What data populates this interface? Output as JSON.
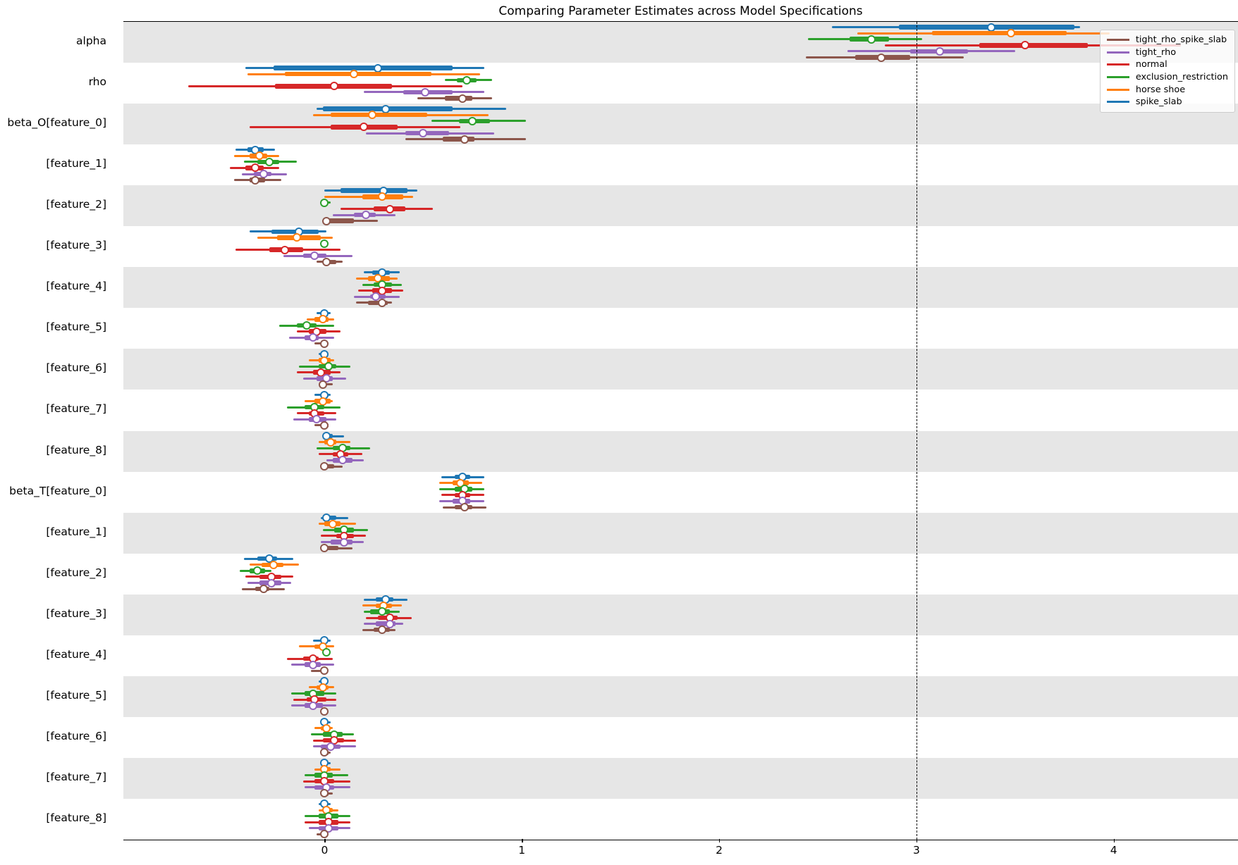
{
  "colors": {
    "background": "#ffffff",
    "band_shaded": "#e6e6e6",
    "spine": "#000000",
    "reference_line": "#000000",
    "legend_border": "#cccccc"
  },
  "chart_data": {
    "type": "forest",
    "title": "Comparing Parameter Estimates across Model Specifications",
    "xlabel": "",
    "ylabel": "",
    "xlim": [
      -1.02,
      4.63
    ],
    "xticks": [
      0,
      1,
      2,
      3,
      4
    ],
    "xtick_labels": [
      "0",
      "1",
      "2",
      "3",
      "4"
    ],
    "reference_line_x": 3,
    "grid": false,
    "legend_position": "upper right",
    "legend": [
      {
        "label": "tight_rho_spike_slab",
        "color": "#8c564b"
      },
      {
        "label": "tight_rho",
        "color": "#9467bd"
      },
      {
        "label": "normal",
        "color": "#d62728"
      },
      {
        "label": "exclusion_restriction",
        "color": "#2ca02c"
      },
      {
        "label": "horse shoe",
        "color": "#ff7f0e"
      },
      {
        "label": "spike_slab",
        "color": "#1f77b4"
      }
    ],
    "series": [
      {
        "name": "spike_slab",
        "color": "#1f77b4"
      },
      {
        "name": "horse shoe",
        "color": "#ff7f0e"
      },
      {
        "name": "exclusion_restriction",
        "color": "#2ca02c"
      },
      {
        "name": "normal",
        "color": "#d62728"
      },
      {
        "name": "tight_rho",
        "color": "#9467bd"
      },
      {
        "name": "tight_rho_spike_slab",
        "color": "#8c564b"
      }
    ],
    "value_format": "[ci_low, q25, median, q75, ci_high]",
    "rows": [
      {
        "label": "alpha",
        "shaded": true,
        "values": [
          [
            2.57,
            2.91,
            3.38,
            3.8,
            3.83
          ],
          [
            2.7,
            3.08,
            3.48,
            3.76,
            3.98
          ],
          [
            2.45,
            2.66,
            2.77,
            2.86,
            3.03
          ],
          [
            2.84,
            3.32,
            3.55,
            3.87,
            4.34
          ],
          [
            2.65,
            2.97,
            3.12,
            3.26,
            3.5
          ],
          [
            2.44,
            2.69,
            2.82,
            2.97,
            3.24
          ]
        ]
      },
      {
        "label": "rho",
        "shaded": false,
        "values": [
          [
            -0.4,
            -0.26,
            0.27,
            0.65,
            0.81
          ],
          [
            -0.39,
            -0.2,
            0.15,
            0.54,
            0.79
          ],
          [
            0.61,
            0.67,
            0.72,
            0.77,
            0.85
          ],
          [
            -0.69,
            -0.25,
            0.05,
            0.34,
            0.7
          ],
          [
            0.2,
            0.4,
            0.51,
            0.65,
            0.81
          ],
          [
            0.47,
            0.61,
            0.7,
            0.75,
            0.85
          ]
        ]
      },
      {
        "label": "beta_O[feature_0]",
        "shaded": true,
        "values": [
          [
            -0.04,
            -0.01,
            0.31,
            0.65,
            0.92
          ],
          [
            -0.06,
            0.03,
            0.24,
            0.52,
            0.83
          ],
          [
            0.54,
            0.68,
            0.75,
            0.84,
            1.02
          ],
          [
            -0.38,
            0.03,
            0.2,
            0.37,
            0.69
          ],
          [
            0.21,
            0.41,
            0.5,
            0.63,
            0.86
          ],
          [
            0.41,
            0.6,
            0.71,
            0.76,
            1.02
          ]
        ]
      },
      {
        "label": "[feature_1]",
        "shaded": false,
        "values": [
          [
            -0.45,
            -0.39,
            -0.35,
            -0.31,
            -0.25
          ],
          [
            -0.46,
            -0.38,
            -0.33,
            -0.29,
            -0.23
          ],
          [
            -0.41,
            -0.34,
            -0.28,
            -0.23,
            -0.14
          ],
          [
            -0.48,
            -0.4,
            -0.35,
            -0.31,
            -0.23
          ],
          [
            -0.42,
            -0.36,
            -0.31,
            -0.27,
            -0.19
          ],
          [
            -0.46,
            -0.38,
            -0.35,
            -0.3,
            -0.22
          ]
        ]
      },
      {
        "label": "[feature_2]",
        "shaded": true,
        "values": [
          [
            0.0,
            0.08,
            0.3,
            0.42,
            0.47
          ],
          [
            0.0,
            0.19,
            0.29,
            0.4,
            0.45
          ],
          [
            -0.02,
            -0.01,
            0.0,
            0.01,
            0.03
          ],
          [
            0.08,
            0.25,
            0.33,
            0.41,
            0.55
          ],
          [
            0.04,
            0.15,
            0.21,
            0.26,
            0.36
          ],
          [
            -0.01,
            0.0,
            0.01,
            0.15,
            0.27
          ]
        ]
      },
      {
        "label": "[feature_3]",
        "shaded": false,
        "values": [
          [
            -0.38,
            -0.27,
            -0.13,
            -0.03,
            0.01
          ],
          [
            -0.34,
            -0.24,
            -0.14,
            -0.02,
            0.04
          ],
          [
            -0.02,
            -0.01,
            0.0,
            0.01,
            0.02
          ],
          [
            -0.45,
            -0.28,
            -0.2,
            -0.11,
            0.08
          ],
          [
            -0.21,
            -0.11,
            -0.05,
            0.01,
            0.14
          ],
          [
            -0.04,
            0.0,
            0.01,
            0.06,
            0.09
          ]
        ]
      },
      {
        "label": "[feature_4]",
        "shaded": true,
        "values": [
          [
            0.2,
            0.24,
            0.29,
            0.33,
            0.38
          ],
          [
            0.16,
            0.22,
            0.27,
            0.33,
            0.37
          ],
          [
            0.19,
            0.25,
            0.29,
            0.34,
            0.39
          ],
          [
            0.17,
            0.24,
            0.29,
            0.34,
            0.4
          ],
          [
            0.15,
            0.23,
            0.26,
            0.31,
            0.38
          ],
          [
            0.16,
            0.22,
            0.29,
            0.32,
            0.34
          ]
        ]
      },
      {
        "label": "[feature_5]",
        "shaded": false,
        "values": [
          [
            -0.04,
            -0.02,
            0.0,
            0.01,
            0.03
          ],
          [
            -0.09,
            -0.05,
            -0.01,
            0.02,
            0.05
          ],
          [
            -0.23,
            -0.14,
            -0.09,
            -0.04,
            0.05
          ],
          [
            -0.14,
            -0.08,
            -0.04,
            0.01,
            0.08
          ],
          [
            -0.18,
            -0.1,
            -0.06,
            -0.03,
            0.05
          ],
          [
            -0.05,
            -0.01,
            0.0,
            0.01,
            0.02
          ]
        ]
      },
      {
        "label": "[feature_6]",
        "shaded": true,
        "values": [
          [
            -0.03,
            -0.01,
            0.0,
            0.01,
            0.02
          ],
          [
            -0.08,
            -0.03,
            0.0,
            0.03,
            0.05
          ],
          [
            -0.13,
            -0.03,
            0.02,
            0.06,
            0.13
          ],
          [
            -0.14,
            -0.06,
            -0.02,
            0.03,
            0.08
          ],
          [
            -0.11,
            -0.04,
            0.01,
            0.04,
            0.11
          ],
          [
            -0.02,
            -0.01,
            -0.01,
            0.01,
            0.04
          ]
        ]
      },
      {
        "label": "[feature_7]",
        "shaded": false,
        "values": [
          [
            -0.05,
            -0.02,
            0.0,
            0.02,
            0.03
          ],
          [
            -0.1,
            -0.05,
            -0.01,
            0.03,
            0.04
          ],
          [
            -0.19,
            -0.1,
            -0.05,
            0.0,
            0.08
          ],
          [
            -0.14,
            -0.08,
            -0.05,
            0.0,
            0.06
          ],
          [
            -0.16,
            -0.08,
            -0.04,
            0.01,
            0.06
          ],
          [
            -0.05,
            -0.02,
            0.0,
            0.02,
            0.02
          ]
        ]
      },
      {
        "label": "[feature_8]",
        "shaded": true,
        "values": [
          [
            -0.01,
            0.0,
            0.01,
            0.04,
            0.1
          ],
          [
            -0.03,
            0.0,
            0.03,
            0.06,
            0.13
          ],
          [
            -0.04,
            0.04,
            0.09,
            0.13,
            0.23
          ],
          [
            -0.03,
            0.04,
            0.08,
            0.12,
            0.19
          ],
          [
            0.01,
            0.04,
            0.09,
            0.14,
            0.2
          ],
          [
            -0.01,
            0.0,
            0.0,
            0.05,
            0.09
          ]
        ]
      },
      {
        "label": "beta_T[feature_0]",
        "shaded": false,
        "values": [
          [
            0.59,
            0.66,
            0.7,
            0.74,
            0.81
          ],
          [
            0.58,
            0.65,
            0.69,
            0.73,
            0.8
          ],
          [
            0.58,
            0.66,
            0.71,
            0.75,
            0.81
          ],
          [
            0.59,
            0.66,
            0.7,
            0.74,
            0.81
          ],
          [
            0.58,
            0.65,
            0.7,
            0.74,
            0.81
          ],
          [
            0.6,
            0.66,
            0.71,
            0.75,
            0.82
          ]
        ]
      },
      {
        "label": "[feature_1]",
        "shaded": true,
        "values": [
          [
            -0.02,
            0.0,
            0.01,
            0.06,
            0.12
          ],
          [
            -0.03,
            0.0,
            0.04,
            0.08,
            0.16
          ],
          [
            -0.01,
            0.05,
            0.1,
            0.15,
            0.22
          ],
          [
            -0.02,
            0.06,
            0.1,
            0.15,
            0.21
          ],
          [
            -0.02,
            0.03,
            0.1,
            0.14,
            0.2
          ],
          [
            -0.01,
            0.0,
            0.0,
            0.07,
            0.14
          ]
        ]
      },
      {
        "label": "[feature_2]",
        "shaded": false,
        "values": [
          [
            -0.41,
            -0.34,
            -0.28,
            -0.24,
            -0.16
          ],
          [
            -0.38,
            -0.32,
            -0.26,
            -0.21,
            -0.13
          ],
          [
            -0.43,
            -0.38,
            -0.34,
            -0.3,
            -0.27
          ],
          [
            -0.4,
            -0.33,
            -0.27,
            -0.22,
            -0.16
          ],
          [
            -0.39,
            -0.33,
            -0.27,
            -0.22,
            -0.17
          ],
          [
            -0.42,
            -0.35,
            -0.31,
            -0.28,
            -0.2
          ]
        ]
      },
      {
        "label": "[feature_3]",
        "shaded": true,
        "values": [
          [
            0.2,
            0.26,
            0.31,
            0.35,
            0.42
          ],
          [
            0.19,
            0.26,
            0.3,
            0.34,
            0.39
          ],
          [
            0.2,
            0.23,
            0.29,
            0.33,
            0.38
          ],
          [
            0.21,
            0.27,
            0.33,
            0.37,
            0.44
          ],
          [
            0.2,
            0.26,
            0.33,
            0.36,
            0.4
          ],
          [
            0.19,
            0.25,
            0.29,
            0.33,
            0.36
          ]
        ]
      },
      {
        "label": "[feature_4]",
        "shaded": false,
        "values": [
          [
            -0.06,
            -0.02,
            0.0,
            0.01,
            0.03
          ],
          [
            -0.13,
            -0.05,
            -0.01,
            0.01,
            0.05
          ],
          [
            -0.01,
            0.0,
            0.01,
            0.01,
            0.02
          ],
          [
            -0.19,
            -0.11,
            -0.06,
            -0.03,
            0.04
          ],
          [
            -0.17,
            -0.1,
            -0.06,
            -0.02,
            0.05
          ],
          [
            -0.07,
            -0.02,
            0.0,
            0.01,
            0.01
          ]
        ]
      },
      {
        "label": "[feature_5]",
        "shaded": true,
        "values": [
          [
            -0.03,
            -0.01,
            0.0,
            0.01,
            0.02
          ],
          [
            -0.08,
            -0.04,
            -0.01,
            0.02,
            0.05
          ],
          [
            -0.17,
            -0.1,
            -0.06,
            0.0,
            0.06
          ],
          [
            -0.16,
            -0.09,
            -0.05,
            0.01,
            0.06
          ],
          [
            -0.17,
            -0.1,
            -0.06,
            -0.01,
            0.06
          ],
          [
            -0.02,
            -0.01,
            0.0,
            0.01,
            0.02
          ]
        ]
      },
      {
        "label": "[feature_6]",
        "shaded": false,
        "values": [
          [
            -0.02,
            -0.01,
            0.0,
            0.01,
            0.03
          ],
          [
            -0.05,
            -0.02,
            0.01,
            0.03,
            0.04
          ],
          [
            -0.07,
            -0.01,
            0.05,
            0.09,
            0.15
          ],
          [
            -0.06,
            -0.01,
            0.05,
            0.1,
            0.16
          ],
          [
            -0.06,
            -0.02,
            0.03,
            0.08,
            0.16
          ],
          [
            -0.01,
            0.0,
            0.0,
            0.02,
            0.03
          ]
        ]
      },
      {
        "label": "[feature_7]",
        "shaded": true,
        "values": [
          [
            -0.02,
            -0.01,
            0.0,
            0.01,
            0.03
          ],
          [
            -0.05,
            -0.02,
            0.0,
            0.03,
            0.08
          ],
          [
            -0.1,
            -0.05,
            0.0,
            0.04,
            0.12
          ],
          [
            -0.11,
            -0.05,
            0.0,
            0.05,
            0.13
          ],
          [
            -0.1,
            -0.05,
            0.01,
            0.05,
            0.13
          ],
          [
            -0.01,
            0.0,
            0.0,
            0.02,
            0.04
          ]
        ]
      },
      {
        "label": "[feature_8]",
        "shaded": false,
        "values": [
          [
            -0.03,
            -0.01,
            0.0,
            0.01,
            0.03
          ],
          [
            -0.03,
            -0.01,
            0.01,
            0.04,
            0.07
          ],
          [
            -0.1,
            -0.03,
            0.02,
            0.07,
            0.13
          ],
          [
            -0.1,
            -0.03,
            0.02,
            0.07,
            0.13
          ],
          [
            -0.08,
            -0.03,
            0.02,
            0.07,
            0.13
          ],
          [
            -0.04,
            -0.02,
            0.0,
            0.01,
            0.01
          ]
        ]
      }
    ]
  }
}
